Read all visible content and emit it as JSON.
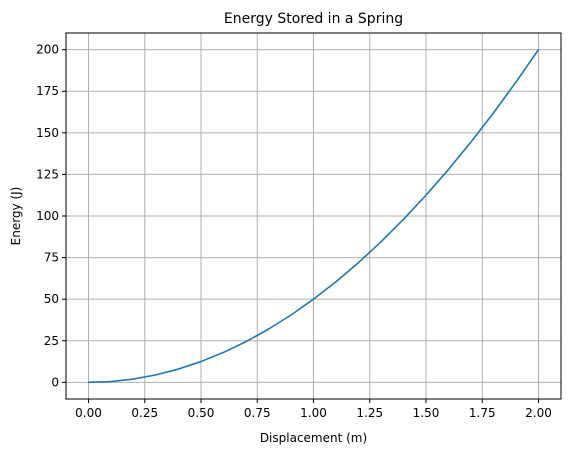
{
  "chart_data": {
    "type": "line",
    "title": "Energy Stored in a Spring",
    "xlabel": "Displacement (m)",
    "ylabel": "Energy (J)",
    "xlim": [
      -0.1,
      2.1
    ],
    "ylim": [
      -10,
      210
    ],
    "grid": true,
    "x_ticks": [
      0.0,
      0.25,
      0.5,
      0.75,
      1.0,
      1.25,
      1.5,
      1.75,
      2.0
    ],
    "x_tick_labels": [
      "0.00",
      "0.25",
      "0.50",
      "0.75",
      "1.00",
      "1.25",
      "1.50",
      "1.75",
      "2.00"
    ],
    "y_ticks": [
      0,
      25,
      50,
      75,
      100,
      125,
      150,
      175,
      200
    ],
    "y_tick_labels": [
      "0",
      "25",
      "50",
      "75",
      "100",
      "125",
      "150",
      "175",
      "200"
    ],
    "series": [
      {
        "color": "#1f77b4",
        "x": [
          0.0,
          0.1,
          0.2,
          0.3,
          0.4,
          0.5,
          0.6,
          0.7,
          0.8,
          0.9,
          1.0,
          1.1,
          1.2,
          1.3,
          1.4,
          1.5,
          1.6,
          1.7,
          1.8,
          1.9,
          2.0
        ],
        "y": [
          0,
          0.5,
          2,
          4.5,
          8,
          12.5,
          18,
          24.5,
          32,
          40.5,
          50,
          60.5,
          72,
          84.5,
          98,
          112.5,
          128,
          144.5,
          162,
          180.5,
          200
        ]
      }
    ]
  }
}
